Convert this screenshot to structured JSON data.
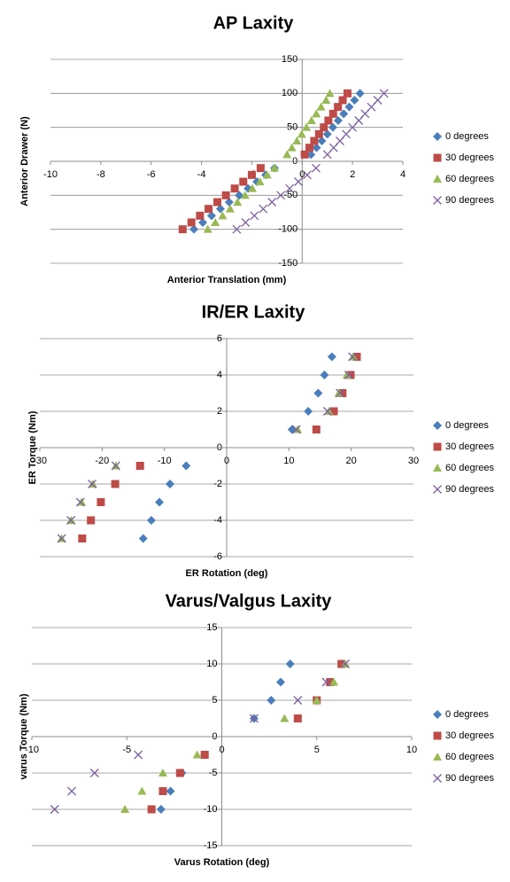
{
  "chart_data": [
    {
      "type": "scatter",
      "title": "AP Laxity",
      "x_label": "Anterior Translation  (mm)",
      "y_label": "Anterior Drawer (N)",
      "xlim": [
        -10,
        4
      ],
      "xticks": [
        -10,
        -8,
        -6,
        -4,
        -2,
        0,
        2,
        4
      ],
      "ylim": [
        -150,
        150
      ],
      "yticks": [
        -150,
        -100,
        -50,
        0,
        50,
        100,
        150
      ],
      "grid": true,
      "legend": "right",
      "series": [
        {
          "name": "0 degrees",
          "color": "#4a7ebb",
          "marker": "diamond",
          "x": [
            -4.3,
            -3.95,
            -3.6,
            -3.25,
            -2.9,
            -2.5,
            -2.15,
            -1.8,
            -1.45,
            -1.1,
            0.35,
            0.57,
            0.78,
            1.0,
            1.22,
            1.43,
            1.65,
            1.87,
            2.08,
            2.3
          ],
          "values": [
            -100,
            -90,
            -80,
            -70,
            -60,
            -50,
            -40,
            -30,
            -20,
            -10,
            10,
            20,
            30,
            40,
            50,
            60,
            70,
            80,
            90,
            100
          ]
        },
        {
          "name": "30 degrees",
          "color": "#be4b48",
          "marker": "square",
          "x": [
            -4.75,
            -4.4,
            -4.06,
            -3.72,
            -3.37,
            -3.03,
            -2.68,
            -2.34,
            -2.0,
            -1.65,
            0.1,
            0.29,
            0.48,
            0.67,
            0.86,
            1.04,
            1.23,
            1.42,
            1.61,
            1.8
          ],
          "values": [
            -100,
            -90,
            -80,
            -70,
            -60,
            -50,
            -40,
            -30,
            -20,
            -10,
            10,
            20,
            30,
            40,
            50,
            60,
            70,
            80,
            90,
            100
          ]
        },
        {
          "name": "60 degrees",
          "color": "#98b954",
          "marker": "triangle",
          "x": [
            -3.75,
            -3.45,
            -3.16,
            -2.86,
            -2.57,
            -2.27,
            -1.98,
            -1.68,
            -1.39,
            -1.1,
            -0.6,
            -0.41,
            -0.21,
            -0.02,
            0.17,
            0.37,
            0.56,
            0.75,
            0.95,
            1.1
          ],
          "values": [
            -100,
            -90,
            -80,
            -70,
            -60,
            -50,
            -40,
            -30,
            -20,
            -10,
            10,
            20,
            30,
            40,
            50,
            60,
            70,
            80,
            90,
            100
          ]
        },
        {
          "name": "90 degrees",
          "color": "#7d60a0",
          "marker": "x",
          "x": [
            -2.6,
            -2.25,
            -1.9,
            -1.55,
            -1.2,
            -0.85,
            -0.5,
            -0.15,
            0.2,
            0.55,
            1.0,
            1.25,
            1.5,
            1.75,
            2.0,
            2.25,
            2.5,
            2.75,
            3.0,
            3.25
          ],
          "values": [
            -100,
            -90,
            -80,
            -70,
            -60,
            -50,
            -40,
            -30,
            -20,
            -10,
            10,
            20,
            30,
            40,
            50,
            60,
            70,
            80,
            90,
            100
          ]
        }
      ]
    },
    {
      "type": "scatter",
      "title": "IR/ER Laxity",
      "x_label": "ER Rotation (deg)",
      "y_label": "ER Torque (Nm)",
      "xlim": [
        -30,
        30
      ],
      "xticks": [
        -30,
        -20,
        -10,
        0,
        10,
        20,
        30
      ],
      "ylim": [
        -6,
        6
      ],
      "yticks": [
        -6,
        -4,
        -2,
        0,
        2,
        4,
        6
      ],
      "grid": true,
      "legend": "right",
      "series": [
        {
          "name": "0 degrees",
          "color": "#4a7ebb",
          "marker": "diamond",
          "x": [
            16.9,
            15.7,
            14.7,
            13.1,
            10.5,
            -6.5,
            -9.1,
            -10.8,
            -12.1,
            -13.4
          ],
          "values": [
            5,
            4,
            3,
            2,
            1,
            -1,
            -2,
            -3,
            -4,
            -5
          ]
        },
        {
          "name": "30 degrees",
          "color": "#be4b48",
          "marker": "square",
          "x": [
            20.9,
            19.9,
            18.6,
            17.2,
            14.4,
            -13.9,
            -17.9,
            -20.2,
            -21.8,
            -23.2
          ],
          "values": [
            5,
            4,
            3,
            2,
            1,
            -1,
            -2,
            -3,
            -4,
            -5
          ]
        },
        {
          "name": "60 degrees",
          "color": "#98b954",
          "marker": "triangle",
          "x": [
            20.3,
            19.3,
            18.0,
            16.4,
            11.4,
            -17.8,
            -21.5,
            -23.3,
            -25.0,
            -26.5
          ],
          "values": [
            5,
            4,
            3,
            2,
            1,
            -1,
            -2,
            -3,
            -4,
            -5
          ]
        },
        {
          "name": "90 degrees",
          "color": "#7d60a0",
          "marker": "x",
          "x": [
            20.2,
            19.6,
            18.2,
            16.2,
            11.2,
            -17.8,
            -21.6,
            -23.5,
            -25.0,
            -26.5
          ],
          "values": [
            5,
            4,
            3,
            2,
            1,
            -1,
            -2,
            -3,
            -4,
            -5
          ]
        }
      ]
    },
    {
      "type": "scatter",
      "title": "Varus/Valgus Laxity",
      "x_label": "Varus Rotation (deg)",
      "y_label": "varus Torque (Nm)",
      "xlim": [
        -10,
        10
      ],
      "xticks": [
        -10,
        -5,
        0,
        5,
        10
      ],
      "ylim": [
        -15,
        15
      ],
      "yticks": [
        -15,
        -10,
        -5,
        0,
        5,
        10,
        15
      ],
      "grid": true,
      "legend": "right",
      "series": [
        {
          "name": "0 degrees",
          "color": "#4a7ebb",
          "marker": "diamond",
          "x": [
            3.6,
            3.1,
            2.6,
            1.7,
            -0.9,
            -2.1,
            -2.7,
            -3.2
          ],
          "values": [
            10,
            7.5,
            5,
            2.5,
            -2.5,
            -5,
            -7.5,
            -10
          ]
        },
        {
          "name": "30 degrees",
          "color": "#be4b48",
          "marker": "square",
          "x": [
            6.3,
            5.7,
            5.0,
            4.0,
            -0.9,
            -2.2,
            -3.1,
            -3.7
          ],
          "values": [
            10,
            7.5,
            5,
            2.5,
            -2.5,
            -5,
            -7.5,
            -10
          ]
        },
        {
          "name": "60 degrees",
          "color": "#98b954",
          "marker": "triangle",
          "x": [
            6.5,
            5.9,
            5.0,
            3.3,
            -1.3,
            -3.1,
            -4.2,
            -5.1
          ],
          "values": [
            10,
            7.5,
            5,
            2.5,
            -2.5,
            -5,
            -7.5,
            -10
          ]
        },
        {
          "name": "90 degrees",
          "color": "#7d60a0",
          "marker": "x",
          "x": [
            6.5,
            5.5,
            4.0,
            1.7,
            -4.4,
            -6.7,
            -7.9,
            -8.8
          ],
          "values": [
            10,
            7.5,
            5,
            2.5,
            -2.5,
            -5,
            -7.5,
            -10
          ]
        }
      ]
    }
  ]
}
